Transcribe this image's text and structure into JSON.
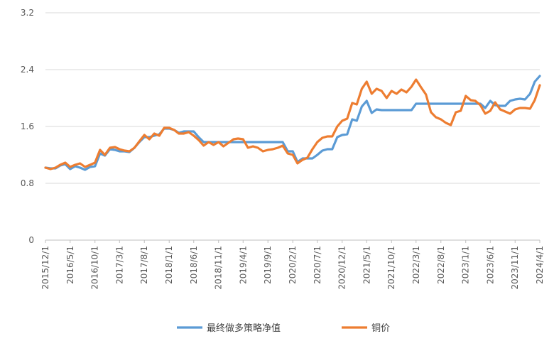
{
  "chart_data": {
    "type": "line",
    "title": "",
    "xlabel": "",
    "ylabel": "",
    "ylim": [
      0,
      3.2
    ],
    "yticks": [
      "3.2",
      "2.4",
      "1.6",
      "0.8",
      "0"
    ],
    "grid": "horizontal",
    "legend_position": "bottom",
    "colors": {
      "strategy": "#5B9BD5",
      "copper": "#ED7D31",
      "grid": "#D9D9D9",
      "axis": "#BFBFBF"
    },
    "x_tick_labels": [
      "2015/12/1",
      "2016/5/1",
      "2016/10/1",
      "2017/3/1",
      "2017/8/1",
      "2018/1/1",
      "2018/6/1",
      "2018/11/1",
      "2019/4/1",
      "2019/9/1",
      "2020/2/1",
      "2020/7/1",
      "2020/12/1",
      "2021/5/1",
      "2021/10/1",
      "2022/3/1",
      "2022/8/1",
      "2023/1/1",
      "2023/6/1",
      "2023/11/1",
      "2024/4/1"
    ],
    "x_range": [
      "2015-12-01",
      "2024-04-01"
    ],
    "series": [
      {
        "name": "最终做多策略净值",
        "points": [
          [
            "2015-12-01",
            1.02
          ],
          [
            "2016-01-01",
            1.01
          ],
          [
            "2016-02-01",
            1.01
          ],
          [
            "2016-03-01",
            1.05
          ],
          [
            "2016-04-01",
            1.07
          ],
          [
            "2016-05-01",
            1.0
          ],
          [
            "2016-06-01",
            1.04
          ],
          [
            "2016-07-01",
            1.02
          ],
          [
            "2016-08-01",
            0.99
          ],
          [
            "2016-09-01",
            1.03
          ],
          [
            "2016-10-01",
            1.04
          ],
          [
            "2016-11-01",
            1.22
          ],
          [
            "2016-12-01",
            1.19
          ],
          [
            "2017-01-01",
            1.28
          ],
          [
            "2017-02-01",
            1.27
          ],
          [
            "2017-03-01",
            1.25
          ],
          [
            "2017-04-01",
            1.25
          ],
          [
            "2017-05-01",
            1.24
          ],
          [
            "2017-06-01",
            1.3
          ],
          [
            "2017-07-01",
            1.38
          ],
          [
            "2017-08-01",
            1.45
          ],
          [
            "2017-09-01",
            1.45
          ],
          [
            "2017-10-01",
            1.47
          ],
          [
            "2017-11-01",
            1.49
          ],
          [
            "2017-12-01",
            1.57
          ],
          [
            "2018-01-01",
            1.57
          ],
          [
            "2018-02-01",
            1.55
          ],
          [
            "2018-03-01",
            1.51
          ],
          [
            "2018-04-01",
            1.53
          ],
          [
            "2018-05-01",
            1.53
          ],
          [
            "2018-06-01",
            1.53
          ],
          [
            "2018-07-01",
            1.45
          ],
          [
            "2018-08-01",
            1.38
          ],
          [
            "2018-09-01",
            1.38
          ],
          [
            "2018-10-01",
            1.38
          ],
          [
            "2018-11-01",
            1.38
          ],
          [
            "2018-12-01",
            1.38
          ],
          [
            "2019-01-01",
            1.38
          ],
          [
            "2019-02-01",
            1.38
          ],
          [
            "2019-03-01",
            1.38
          ],
          [
            "2019-04-01",
            1.38
          ],
          [
            "2019-05-01",
            1.38
          ],
          [
            "2019-06-01",
            1.38
          ],
          [
            "2019-07-01",
            1.38
          ],
          [
            "2019-08-01",
            1.38
          ],
          [
            "2019-09-01",
            1.38
          ],
          [
            "2019-10-01",
            1.38
          ],
          [
            "2019-11-01",
            1.38
          ],
          [
            "2019-12-01",
            1.38
          ],
          [
            "2020-01-01",
            1.25
          ],
          [
            "2020-02-01",
            1.25
          ],
          [
            "2020-03-01",
            1.1
          ],
          [
            "2020-04-01",
            1.15
          ],
          [
            "2020-05-01",
            1.15
          ],
          [
            "2020-06-01",
            1.15
          ],
          [
            "2020-07-01",
            1.2
          ],
          [
            "2020-08-01",
            1.26
          ],
          [
            "2020-09-01",
            1.28
          ],
          [
            "2020-10-01",
            1.28
          ],
          [
            "2020-11-01",
            1.45
          ],
          [
            "2020-12-01",
            1.48
          ],
          [
            "2021-01-01",
            1.49
          ],
          [
            "2021-02-01",
            1.7
          ],
          [
            "2021-03-01",
            1.68
          ],
          [
            "2021-04-01",
            1.88
          ],
          [
            "2021-05-01",
            1.96
          ],
          [
            "2021-06-01",
            1.79
          ],
          [
            "2021-07-01",
            1.84
          ],
          [
            "2021-08-01",
            1.83
          ],
          [
            "2021-09-01",
            1.83
          ],
          [
            "2021-10-01",
            1.83
          ],
          [
            "2021-11-01",
            1.83
          ],
          [
            "2021-12-01",
            1.83
          ],
          [
            "2022-01-01",
            1.83
          ],
          [
            "2022-02-01",
            1.83
          ],
          [
            "2022-03-01",
            1.92
          ],
          [
            "2022-04-01",
            1.92
          ],
          [
            "2022-05-01",
            1.92
          ],
          [
            "2022-06-01",
            1.92
          ],
          [
            "2022-07-01",
            1.92
          ],
          [
            "2022-08-01",
            1.92
          ],
          [
            "2022-09-01",
            1.92
          ],
          [
            "2022-10-01",
            1.92
          ],
          [
            "2022-11-01",
            1.92
          ],
          [
            "2022-12-01",
            1.92
          ],
          [
            "2023-01-01",
            1.92
          ],
          [
            "2023-02-01",
            1.92
          ],
          [
            "2023-03-01",
            1.92
          ],
          [
            "2023-04-01",
            1.92
          ],
          [
            "2023-05-01",
            1.86
          ],
          [
            "2023-06-01",
            1.96
          ],
          [
            "2023-07-01",
            1.9
          ],
          [
            "2023-08-01",
            1.89
          ],
          [
            "2023-09-01",
            1.89
          ],
          [
            "2023-10-01",
            1.96
          ],
          [
            "2023-11-01",
            1.98
          ],
          [
            "2023-12-01",
            1.99
          ],
          [
            "2024-01-01",
            1.98
          ],
          [
            "2024-02-01",
            2.06
          ],
          [
            "2024-03-01",
            2.23
          ],
          [
            "2024-04-01",
            2.31
          ]
        ]
      },
      {
        "name": "铜价",
        "points": [
          [
            "2015-12-01",
            1.02
          ],
          [
            "2016-01-01",
            1.0
          ],
          [
            "2016-02-01",
            1.02
          ],
          [
            "2016-03-01",
            1.06
          ],
          [
            "2016-04-01",
            1.09
          ],
          [
            "2016-05-01",
            1.03
          ],
          [
            "2016-06-01",
            1.06
          ],
          [
            "2016-07-01",
            1.08
          ],
          [
            "2016-08-01",
            1.03
          ],
          [
            "2016-09-01",
            1.06
          ],
          [
            "2016-10-01",
            1.09
          ],
          [
            "2016-11-01",
            1.27
          ],
          [
            "2016-12-01",
            1.2
          ],
          [
            "2017-01-01",
            1.3
          ],
          [
            "2017-02-01",
            1.31
          ],
          [
            "2017-03-01",
            1.28
          ],
          [
            "2017-04-01",
            1.26
          ],
          [
            "2017-05-01",
            1.25
          ],
          [
            "2017-06-01",
            1.3
          ],
          [
            "2017-07-01",
            1.39
          ],
          [
            "2017-08-01",
            1.48
          ],
          [
            "2017-09-01",
            1.42
          ],
          [
            "2017-10-01",
            1.5
          ],
          [
            "2017-11-01",
            1.47
          ],
          [
            "2017-12-01",
            1.58
          ],
          [
            "2018-01-01",
            1.58
          ],
          [
            "2018-02-01",
            1.55
          ],
          [
            "2018-03-01",
            1.5
          ],
          [
            "2018-04-01",
            1.5
          ],
          [
            "2018-05-01",
            1.52
          ],
          [
            "2018-06-01",
            1.47
          ],
          [
            "2018-07-01",
            1.41
          ],
          [
            "2018-08-01",
            1.33
          ],
          [
            "2018-09-01",
            1.38
          ],
          [
            "2018-10-01",
            1.34
          ],
          [
            "2018-11-01",
            1.38
          ],
          [
            "2018-12-01",
            1.32
          ],
          [
            "2019-01-01",
            1.37
          ],
          [
            "2019-02-01",
            1.42
          ],
          [
            "2019-03-01",
            1.43
          ],
          [
            "2019-04-01",
            1.42
          ],
          [
            "2019-05-01",
            1.3
          ],
          [
            "2019-06-01",
            1.32
          ],
          [
            "2019-07-01",
            1.3
          ],
          [
            "2019-08-01",
            1.25
          ],
          [
            "2019-09-01",
            1.27
          ],
          [
            "2019-10-01",
            1.28
          ],
          [
            "2019-11-01",
            1.3
          ],
          [
            "2019-12-01",
            1.33
          ],
          [
            "2020-01-01",
            1.22
          ],
          [
            "2020-02-01",
            1.2
          ],
          [
            "2020-03-01",
            1.08
          ],
          [
            "2020-04-01",
            1.13
          ],
          [
            "2020-05-01",
            1.16
          ],
          [
            "2020-06-01",
            1.28
          ],
          [
            "2020-07-01",
            1.38
          ],
          [
            "2020-08-01",
            1.44
          ],
          [
            "2020-09-01",
            1.46
          ],
          [
            "2020-10-01",
            1.46
          ],
          [
            "2020-11-01",
            1.6
          ],
          [
            "2020-12-01",
            1.68
          ],
          [
            "2021-01-01",
            1.71
          ],
          [
            "2021-02-01",
            1.93
          ],
          [
            "2021-03-01",
            1.91
          ],
          [
            "2021-04-01",
            2.13
          ],
          [
            "2021-05-01",
            2.23
          ],
          [
            "2021-06-01",
            2.06
          ],
          [
            "2021-07-01",
            2.13
          ],
          [
            "2021-08-01",
            2.1
          ],
          [
            "2021-09-01",
            2.0
          ],
          [
            "2021-10-01",
            2.1
          ],
          [
            "2021-11-01",
            2.06
          ],
          [
            "2021-12-01",
            2.12
          ],
          [
            "2022-01-01",
            2.08
          ],
          [
            "2022-02-01",
            2.16
          ],
          [
            "2022-03-01",
            2.26
          ],
          [
            "2022-04-01",
            2.15
          ],
          [
            "2022-05-01",
            2.05
          ],
          [
            "2022-06-01",
            1.8
          ],
          [
            "2022-07-01",
            1.73
          ],
          [
            "2022-08-01",
            1.7
          ],
          [
            "2022-09-01",
            1.65
          ],
          [
            "2022-10-01",
            1.62
          ],
          [
            "2022-11-01",
            1.8
          ],
          [
            "2022-12-01",
            1.82
          ],
          [
            "2023-01-01",
            2.03
          ],
          [
            "2023-02-01",
            1.97
          ],
          [
            "2023-03-01",
            1.96
          ],
          [
            "2023-04-01",
            1.9
          ],
          [
            "2023-05-01",
            1.78
          ],
          [
            "2023-06-01",
            1.82
          ],
          [
            "2023-07-01",
            1.94
          ],
          [
            "2023-08-01",
            1.84
          ],
          [
            "2023-09-01",
            1.81
          ],
          [
            "2023-10-01",
            1.78
          ],
          [
            "2023-11-01",
            1.84
          ],
          [
            "2023-12-01",
            1.86
          ],
          [
            "2024-01-01",
            1.86
          ],
          [
            "2024-02-01",
            1.85
          ],
          [
            "2024-03-01",
            1.97
          ],
          [
            "2024-04-01",
            2.18
          ]
        ]
      }
    ]
  }
}
